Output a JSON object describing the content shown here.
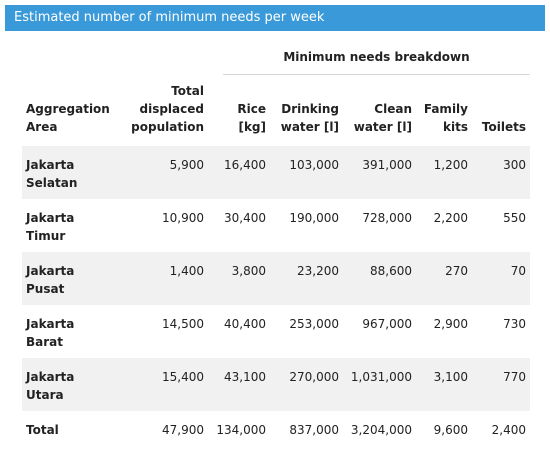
{
  "title": "Estimated number of minimum needs per week",
  "breakdown_label": "Minimum needs breakdown",
  "headers": {
    "area": [
      "Aggregation",
      "Area"
    ],
    "population": [
      "Total",
      "displaced",
      "population"
    ],
    "rice": [
      "Rice",
      "[kg]"
    ],
    "drinking": [
      "Drinking",
      "water [l]"
    ],
    "clean": [
      "Clean",
      "water [l]"
    ],
    "family": [
      "Family",
      "kits"
    ],
    "toilets": [
      "Toilets"
    ]
  },
  "rows": [
    {
      "area": [
        "Jakarta",
        "Selatan"
      ],
      "population": "5,900",
      "rice": "16,400",
      "drinking": "103,000",
      "clean": "391,000",
      "family": "1,200",
      "toilets": "300"
    },
    {
      "area": [
        "Jakarta",
        "Timur"
      ],
      "population": "10,900",
      "rice": "30,400",
      "drinking": "190,000",
      "clean": "728,000",
      "family": "2,200",
      "toilets": "550"
    },
    {
      "area": [
        "Jakarta",
        "Pusat"
      ],
      "population": "1,400",
      "rice": "3,800",
      "drinking": "23,200",
      "clean": "88,600",
      "family": "270",
      "toilets": "70"
    },
    {
      "area": [
        "Jakarta",
        "Barat"
      ],
      "population": "14,500",
      "rice": "40,400",
      "drinking": "253,000",
      "clean": "967,000",
      "family": "2,900",
      "toilets": "730"
    },
    {
      "area": [
        "Jakarta",
        "Utara"
      ],
      "population": "15,400",
      "rice": "43,100",
      "drinking": "270,000",
      "clean": "1,031,000",
      "family": "3,100",
      "toilets": "770"
    }
  ],
  "total": {
    "label": "Total",
    "population": "47,900",
    "rice": "134,000",
    "drinking": "837,000",
    "clean": "3,204,000",
    "family": "9,600",
    "toilets": "2,400"
  },
  "colors": {
    "header_bg": "#3a9ad9",
    "stripe_bg": "#f1f1f1"
  }
}
